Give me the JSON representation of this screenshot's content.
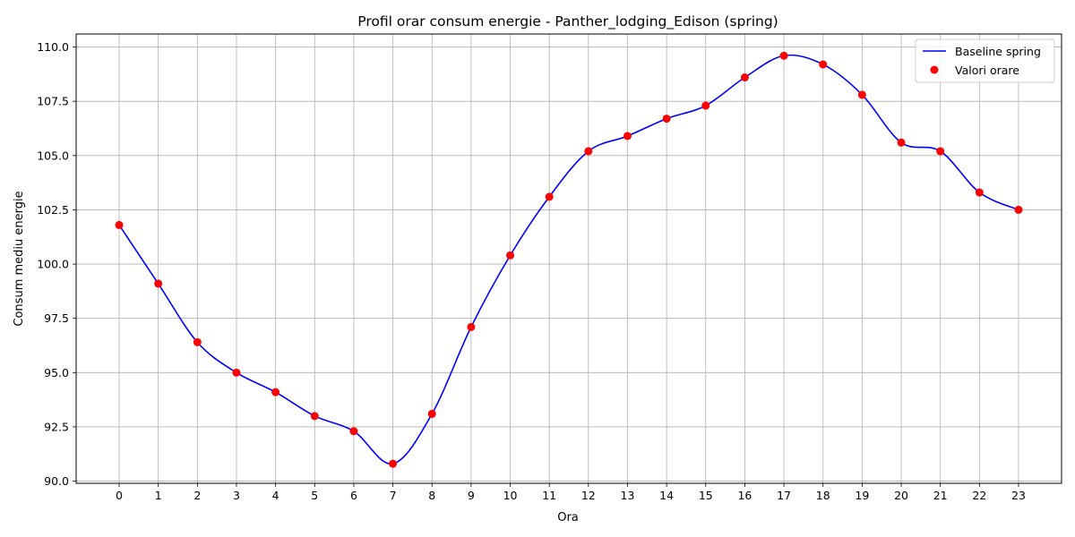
{
  "chart_data": {
    "type": "line",
    "title": "Profil orar consum energie - Panther_lodging_Edison (spring)",
    "xlabel": "Ora",
    "ylabel": "Consum mediu energie",
    "x": [
      0,
      1,
      2,
      3,
      4,
      5,
      6,
      7,
      8,
      9,
      10,
      11,
      12,
      13,
      14,
      15,
      16,
      17,
      18,
      19,
      20,
      21,
      22,
      23
    ],
    "xlim": [
      -1.1,
      24.1
    ],
    "ylim": [
      89.9,
      110.6
    ],
    "yticks": [
      90.0,
      92.5,
      95.0,
      97.5,
      100.0,
      102.5,
      105.0,
      107.5,
      110.0
    ],
    "ytick_labels": [
      "90.0",
      "92.5",
      "95.0",
      "97.5",
      "100.0",
      "102.5",
      "105.0",
      "107.5",
      "110.0"
    ],
    "xtick_labels": [
      "0",
      "1",
      "2",
      "3",
      "4",
      "5",
      "6",
      "7",
      "8",
      "9",
      "10",
      "11",
      "12",
      "13",
      "14",
      "15",
      "16",
      "17",
      "18",
      "19",
      "20",
      "21",
      "22",
      "23"
    ],
    "grid": true,
    "legend_position": "top-right",
    "series": [
      {
        "name": "Baseline spring",
        "kind": "line",
        "color": "#0000ff",
        "values": [
          101.8,
          99.1,
          96.4,
          95.0,
          94.1,
          93.0,
          92.3,
          90.8,
          93.1,
          97.1,
          100.4,
          103.1,
          105.2,
          105.9,
          106.7,
          107.3,
          108.6,
          109.6,
          109.2,
          107.8,
          105.6,
          105.2,
          103.3,
          102.5
        ]
      },
      {
        "name": "Valori orare",
        "kind": "scatter",
        "color": "#ff0000",
        "values": [
          101.8,
          99.1,
          96.4,
          95.0,
          94.1,
          93.0,
          92.3,
          90.8,
          93.1,
          97.1,
          100.4,
          103.1,
          105.2,
          105.9,
          106.7,
          107.3,
          108.6,
          109.6,
          109.2,
          107.8,
          105.6,
          105.2,
          103.3,
          102.5
        ]
      }
    ]
  }
}
